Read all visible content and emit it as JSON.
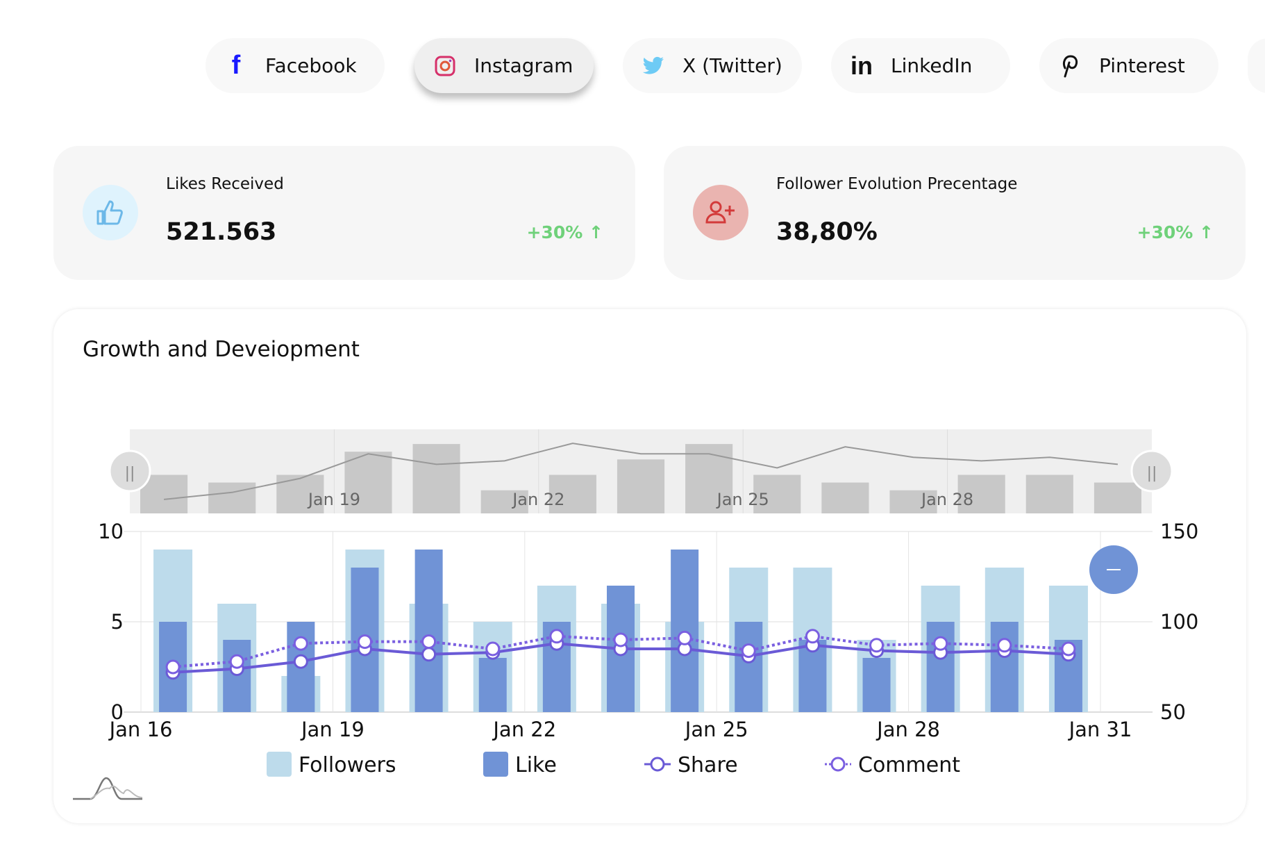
{
  "tabs": [
    {
      "label": "Facebook",
      "icon": "facebook-icon",
      "active": false
    },
    {
      "label": "Instagram",
      "icon": "instagram-icon",
      "active": true
    },
    {
      "label": "X (Twitter)",
      "icon": "twitter-icon",
      "active": false
    },
    {
      "label": "LinkedIn",
      "icon": "linkedin-icon",
      "active": false
    },
    {
      "label": "Pinterest",
      "icon": "pinterest-icon",
      "active": false
    }
  ],
  "stats": [
    {
      "label": "Likes Received",
      "value": "521.563",
      "change": "+30%",
      "icon": "thumbs-up-icon"
    },
    {
      "label": "Follower Evolution Precentage",
      "value": "38,80%",
      "change": "+30%",
      "icon": "user-plus-icon"
    }
  ],
  "chart_title": "Growth and Deveiopment",
  "colors": {
    "followers": "#bddbeb",
    "like": "#7093d6",
    "share": "#6a5ad6",
    "comment": "#7a5fe0",
    "navigator_bar": "#c8c8c8",
    "positive": "#6fd17a"
  },
  "chart_data": {
    "type": "bar",
    "title": "Growth and Deveiopment",
    "categories": [
      "Jan 16",
      "Jan 17",
      "Jan 18",
      "Jan 19",
      "Jan 20",
      "Jan 21",
      "Jan 22",
      "Jan 23",
      "Jan 24",
      "Jan 25",
      "Jan 26",
      "Jan 27",
      "Jan 28",
      "Jan 29",
      "Jan 30"
    ],
    "x_ticks": [
      "Jan 16",
      "Jan 19",
      "Jan 22",
      "Jan 25",
      "Jan 28",
      "Jan 31"
    ],
    "navigator_ticks": [
      "Jan 19",
      "Jan 22",
      "Jan 25",
      "Jan 28"
    ],
    "y_left": {
      "ticks": [
        "0",
        "5",
        "10"
      ],
      "range": [
        0,
        10
      ]
    },
    "y_right": {
      "ticks": [
        "50",
        "100",
        "150"
      ],
      "range": [
        50,
        150
      ]
    },
    "series": [
      {
        "name": "Followers",
        "type": "bar",
        "axis": "left",
        "values": [
          9,
          6,
          2,
          9,
          6,
          5,
          7,
          6,
          5,
          8,
          8,
          4,
          7,
          8,
          7
        ]
      },
      {
        "name": "Like",
        "type": "bar",
        "axis": "left",
        "values": [
          5,
          4,
          5,
          8,
          9,
          3,
          5,
          7,
          9,
          5,
          4,
          3,
          5,
          5,
          4
        ]
      },
      {
        "name": "Share",
        "type": "line",
        "axis": "right",
        "values": [
          72,
          74,
          78,
          85,
          82,
          83,
          88,
          85,
          85,
          81,
          87,
          84,
          83,
          84,
          82
        ]
      },
      {
        "name": "Comment",
        "type": "line-dotted",
        "axis": "right",
        "values": [
          75,
          78,
          88,
          89,
          89,
          85,
          92,
          90,
          91,
          84,
          92,
          87,
          88,
          87,
          85
        ]
      }
    ],
    "legend": [
      "Followers",
      "Like",
      "Share",
      "Comment"
    ],
    "legend_position": "bottom",
    "grid": true
  }
}
